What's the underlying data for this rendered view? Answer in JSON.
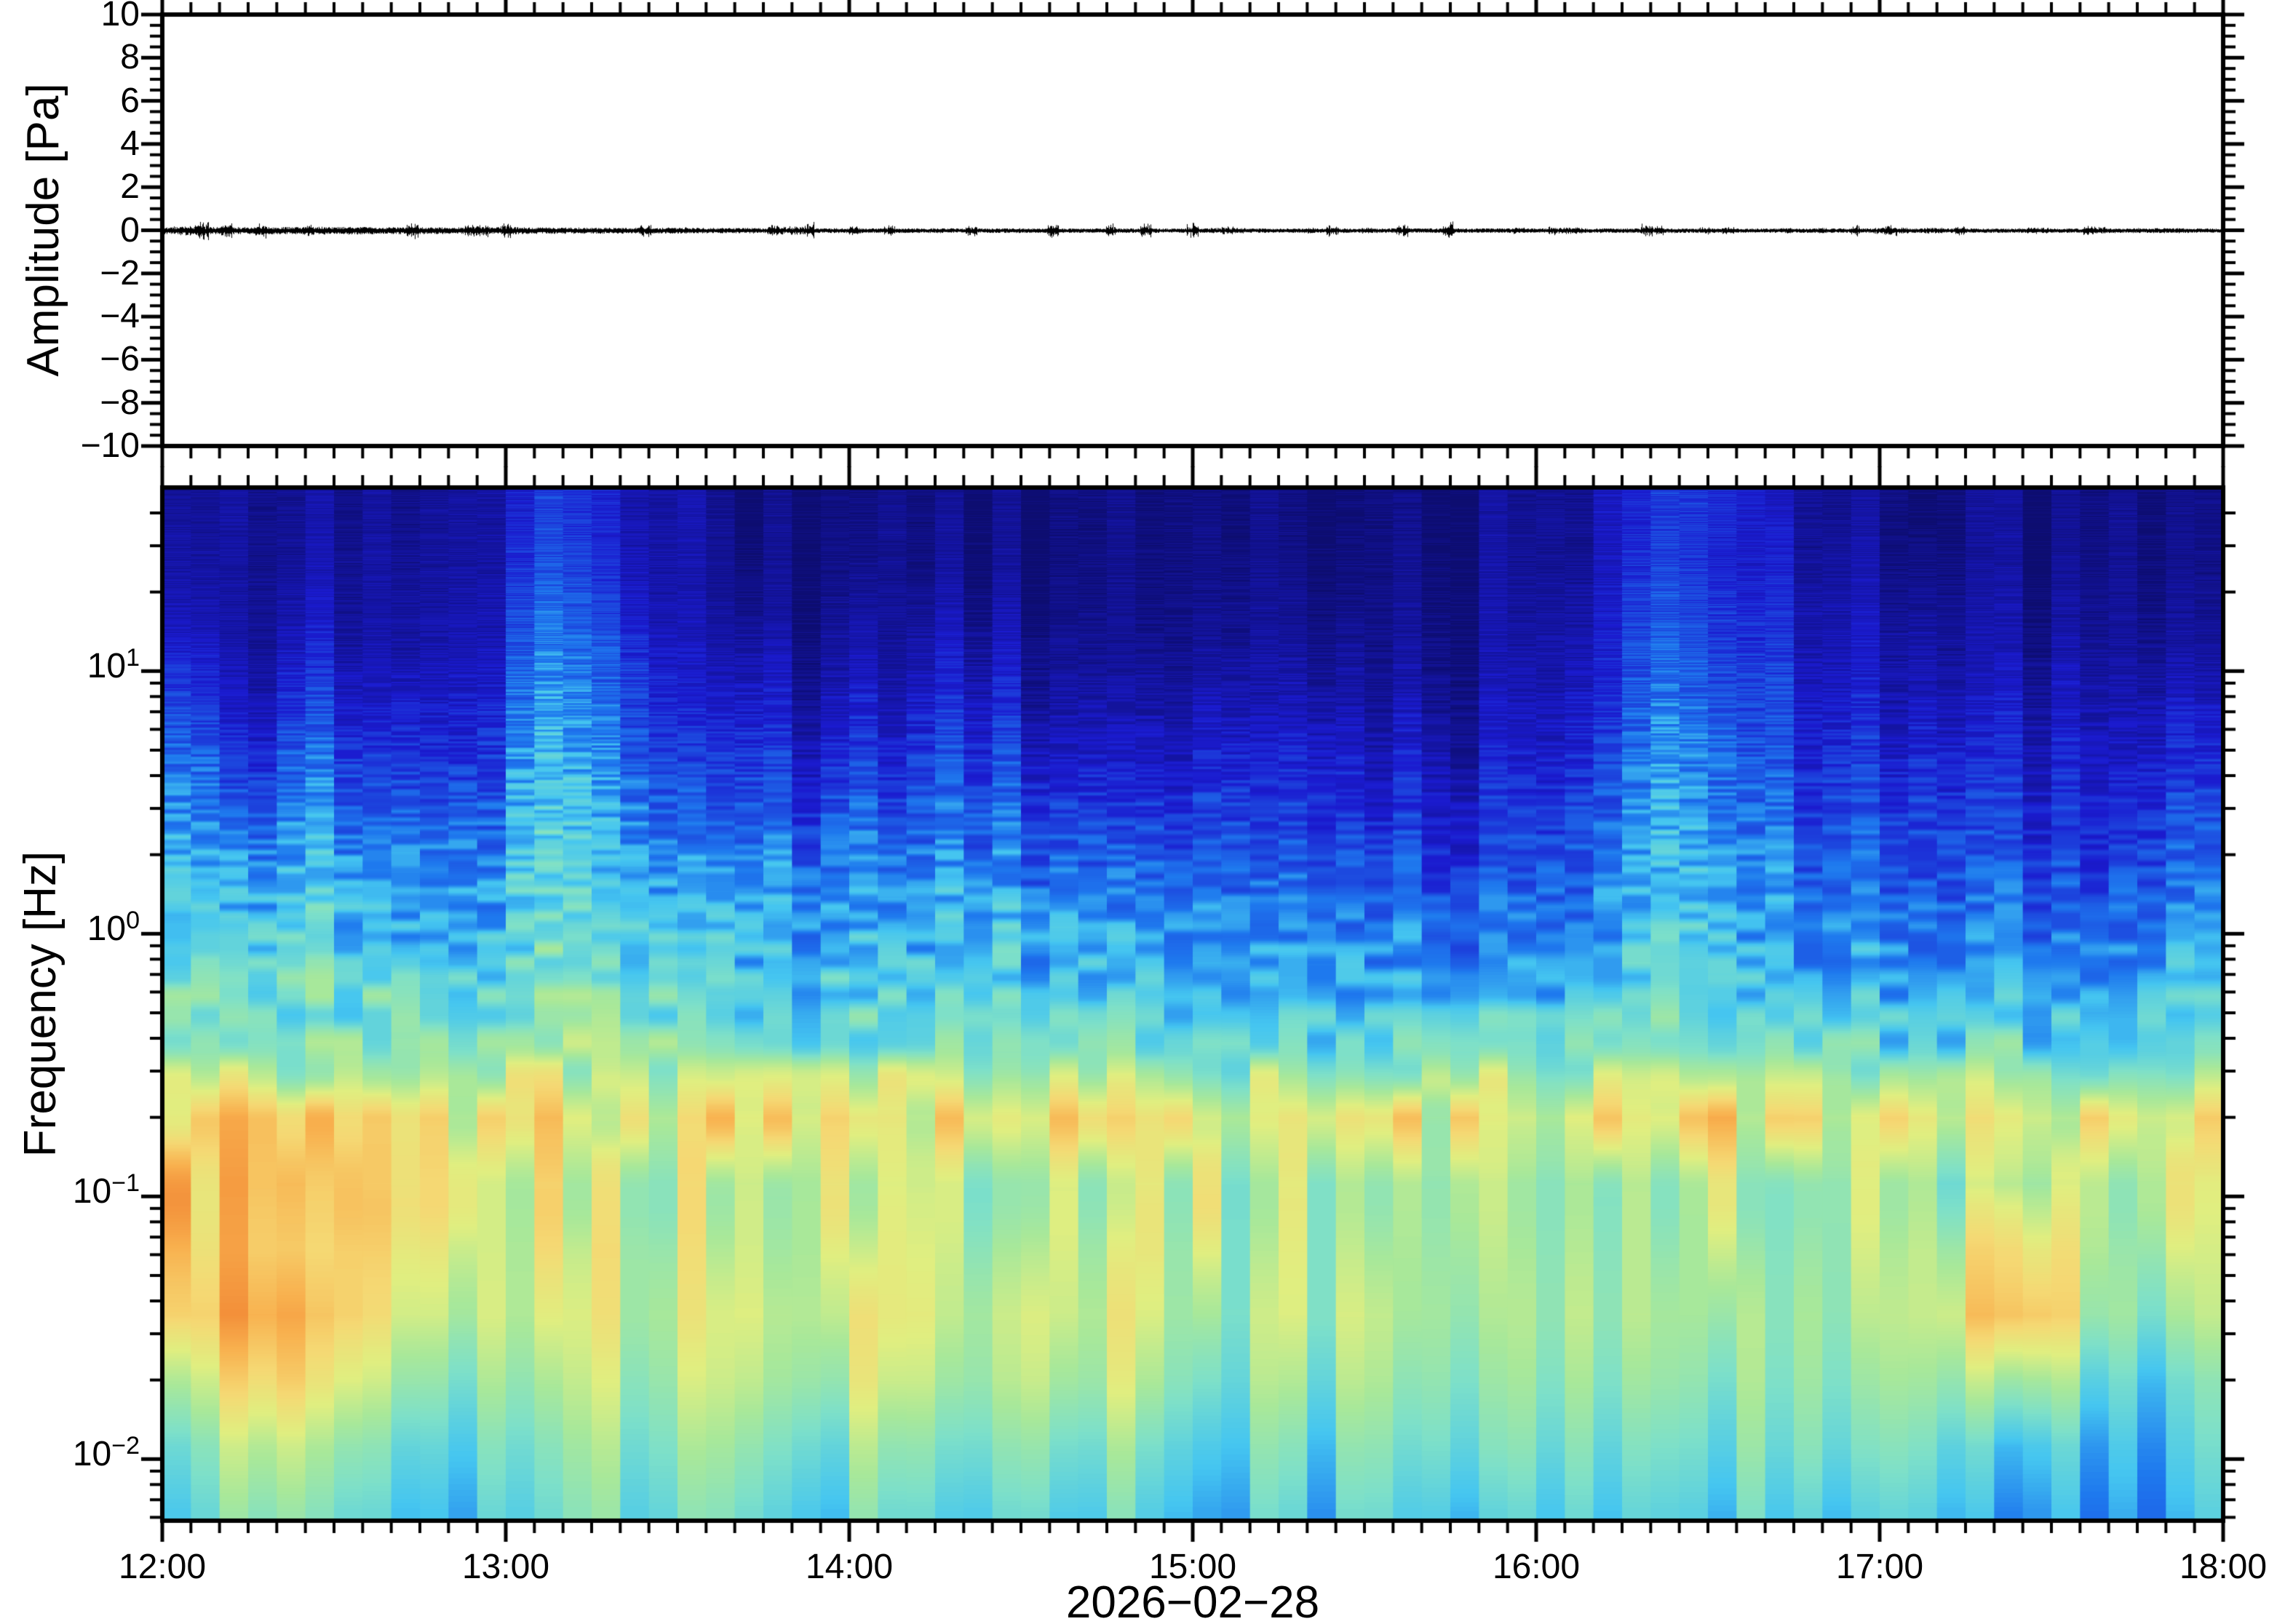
{
  "figure": {
    "background": "#ffffff",
    "frame_color": "#000000",
    "date_label": "2026−02−28",
    "x_axis": {
      "tick_labels": [
        "12:00",
        "13:00",
        "14:00",
        "15:00",
        "16:00",
        "17:00",
        "18:00"
      ],
      "minor_tick_minutes": 5
    },
    "wave_panel": {
      "ylabel": "Amplitude [Pa]",
      "ylim": [
        -10,
        10
      ],
      "ytick_values": [
        10,
        8,
        6,
        4,
        2,
        0,
        -2,
        -4,
        -6,
        -8,
        -10
      ],
      "ytick_labels": [
        "10",
        "8",
        "6",
        "4",
        "2",
        "0",
        "−2",
        "−4",
        "−6",
        "−8",
        "−10"
      ],
      "minor_step_pa": 0.5
    },
    "spec_panel": {
      "ylabel": "Frequency [Hz]",
      "ytick_values": [
        10,
        1,
        0.1,
        0.01
      ],
      "ytick_exponents": [
        "1",
        "0",
        "−1",
        "−2"
      ],
      "freq_max_hz": 50,
      "freq_min_hz": 0.0058
    }
  },
  "chart_data": [
    {
      "type": "line",
      "name": "pressure-waveform",
      "title": "",
      "ylabel": "Amplitude [Pa]",
      "ylim": [
        -10,
        10
      ],
      "x_range": [
        "12:00",
        "18:00"
      ],
      "date": "2026-02-28",
      "description": "Near-flat microbarom noise trace centered on 0 Pa for the whole 6 h window; rms about 0.1 Pa with sporadic bursts to about +/-0.5 Pa, slightly stronger before 13:30.",
      "baseline_pa": 0,
      "noise_rms_pa": 0.1,
      "max_excursion_pa": 0.6
    },
    {
      "type": "heatmap",
      "name": "infrasound-spectrogram",
      "xlabel": "2026−02−28",
      "ylabel": "Frequency [Hz]",
      "x_range": [
        "12:00",
        "18:00"
      ],
      "time_bin_minutes": 5,
      "y_scale": "log",
      "y_range_hz": [
        0.0058,
        50
      ],
      "value_units": "relative spectral power mapped to colormap position 0-1",
      "time_cols": [
        "12:00",
        "12:15",
        "12:30",
        "12:45",
        "13:00",
        "13:15",
        "13:30",
        "13:45",
        "14:00",
        "14:15",
        "14:30",
        "14:45",
        "15:00",
        "15:15",
        "15:30",
        "15:45",
        "16:00",
        "16:15",
        "16:30",
        "16:45",
        "17:00",
        "17:15",
        "17:30",
        "17:45"
      ],
      "row_log10_freq_hz": [
        1.55,
        1.3,
        1.05,
        0.8,
        0.55,
        0.3,
        0.05,
        -0.2,
        -0.45,
        -0.7,
        -0.95,
        -1.2,
        -1.45,
        -1.7,
        -1.95,
        -2.2
      ],
      "values": [
        [
          0.03,
          0.04,
          0.04,
          0.07,
          0.14,
          0.09,
          0.03,
          0.03,
          0.03,
          0.03,
          0.03,
          0.03,
          0.03,
          0.03,
          0.03,
          0.03,
          0.05,
          0.15,
          0.1,
          0.04,
          0.04,
          0.03,
          0.03,
          0.03
        ],
        [
          0.04,
          0.05,
          0.05,
          0.09,
          0.17,
          0.11,
          0.04,
          0.04,
          0.04,
          0.04,
          0.04,
          0.04,
          0.04,
          0.04,
          0.04,
          0.04,
          0.06,
          0.18,
          0.13,
          0.06,
          0.07,
          0.04,
          0.04,
          0.04
        ],
        [
          0.07,
          0.08,
          0.07,
          0.12,
          0.22,
          0.15,
          0.08,
          0.07,
          0.07,
          0.08,
          0.07,
          0.06,
          0.06,
          0.06,
          0.05,
          0.05,
          0.08,
          0.22,
          0.16,
          0.08,
          0.1,
          0.06,
          0.06,
          0.07
        ],
        [
          0.13,
          0.14,
          0.12,
          0.16,
          0.27,
          0.19,
          0.13,
          0.12,
          0.12,
          0.13,
          0.12,
          0.1,
          0.1,
          0.1,
          0.08,
          0.08,
          0.11,
          0.26,
          0.19,
          0.11,
          0.14,
          0.1,
          0.09,
          0.12
        ],
        [
          0.2,
          0.21,
          0.19,
          0.22,
          0.31,
          0.24,
          0.19,
          0.18,
          0.18,
          0.19,
          0.18,
          0.16,
          0.15,
          0.15,
          0.13,
          0.12,
          0.15,
          0.29,
          0.22,
          0.15,
          0.18,
          0.14,
          0.12,
          0.17
        ],
        [
          0.27,
          0.28,
          0.26,
          0.28,
          0.34,
          0.29,
          0.26,
          0.25,
          0.24,
          0.25,
          0.24,
          0.22,
          0.21,
          0.2,
          0.18,
          0.17,
          0.2,
          0.31,
          0.25,
          0.2,
          0.22,
          0.18,
          0.16,
          0.22
        ],
        [
          0.33,
          0.34,
          0.32,
          0.33,
          0.37,
          0.34,
          0.32,
          0.31,
          0.3,
          0.31,
          0.3,
          0.28,
          0.27,
          0.26,
          0.24,
          0.23,
          0.25,
          0.33,
          0.28,
          0.25,
          0.26,
          0.23,
          0.21,
          0.27
        ],
        [
          0.39,
          0.39,
          0.38,
          0.38,
          0.41,
          0.39,
          0.37,
          0.36,
          0.36,
          0.36,
          0.35,
          0.34,
          0.33,
          0.32,
          0.31,
          0.3,
          0.31,
          0.36,
          0.33,
          0.31,
          0.31,
          0.29,
          0.28,
          0.33
        ],
        [
          0.46,
          0.46,
          0.45,
          0.45,
          0.47,
          0.46,
          0.45,
          0.44,
          0.44,
          0.44,
          0.43,
          0.42,
          0.42,
          0.41,
          0.4,
          0.4,
          0.41,
          0.43,
          0.41,
          0.4,
          0.4,
          0.39,
          0.38,
          0.42
        ],
        [
          0.68,
          0.64,
          0.62,
          0.62,
          0.63,
          0.62,
          0.62,
          0.63,
          0.64,
          0.62,
          0.63,
          0.65,
          0.62,
          0.63,
          0.62,
          0.61,
          0.62,
          0.64,
          0.62,
          0.61,
          0.62,
          0.6,
          0.62,
          0.65
        ],
        [
          0.7,
          0.66,
          0.58,
          0.56,
          0.55,
          0.54,
          0.53,
          0.55,
          0.56,
          0.54,
          0.55,
          0.57,
          0.52,
          0.53,
          0.5,
          0.49,
          0.5,
          0.52,
          0.49,
          0.48,
          0.5,
          0.47,
          0.5,
          0.54
        ],
        [
          0.7,
          0.62,
          0.6,
          0.55,
          0.56,
          0.54,
          0.53,
          0.56,
          0.58,
          0.55,
          0.57,
          0.6,
          0.52,
          0.54,
          0.5,
          0.48,
          0.5,
          0.52,
          0.48,
          0.47,
          0.52,
          0.62,
          0.5,
          0.52
        ],
        [
          0.72,
          0.68,
          0.62,
          0.56,
          0.54,
          0.52,
          0.54,
          0.58,
          0.6,
          0.56,
          0.58,
          0.6,
          0.52,
          0.55,
          0.5,
          0.47,
          0.5,
          0.52,
          0.47,
          0.46,
          0.52,
          0.72,
          0.48,
          0.5
        ],
        [
          0.58,
          0.6,
          0.55,
          0.5,
          0.48,
          0.47,
          0.5,
          0.54,
          0.55,
          0.52,
          0.53,
          0.55,
          0.48,
          0.5,
          0.46,
          0.44,
          0.46,
          0.48,
          0.44,
          0.43,
          0.47,
          0.5,
          0.38,
          0.42
        ],
        [
          0.46,
          0.48,
          0.45,
          0.43,
          0.42,
          0.42,
          0.44,
          0.46,
          0.46,
          0.45,
          0.45,
          0.46,
          0.42,
          0.43,
          0.41,
          0.4,
          0.41,
          0.42,
          0.4,
          0.39,
          0.41,
          0.33,
          0.3,
          0.38
        ],
        [
          0.4,
          0.41,
          0.39,
          0.38,
          0.38,
          0.38,
          0.39,
          0.4,
          0.4,
          0.39,
          0.39,
          0.4,
          0.37,
          0.38,
          0.36,
          0.34,
          0.36,
          0.37,
          0.35,
          0.33,
          0.36,
          0.27,
          0.26,
          0.34
        ]
      ],
      "features": [
        "broadband plume to 50 Hz at about 12:50-13:15",
        "broadband plume to 50 Hz at about 16:05-16:35",
        "persistent microbarom yellow band near 0.2 Hz",
        "orange low-frequency energy 0.02-0.1 Hz strongest 12:00-12:40",
        "orange blob near 0.035 Hz at about 17:20",
        "blue quiet patch near 0.01 Hz at about 17:30"
      ],
      "colormap": {
        "name": "jet-like pastel",
        "anchors": [
          {
            "v": 0.0,
            "color": "#0d0d70"
          },
          {
            "v": 0.12,
            "color": "#1b1bd0"
          },
          {
            "v": 0.25,
            "color": "#1e78ee"
          },
          {
            "v": 0.33,
            "color": "#45c6f0"
          },
          {
            "v": 0.42,
            "color": "#7ee0c8"
          },
          {
            "v": 0.5,
            "color": "#a8e89a"
          },
          {
            "v": 0.58,
            "color": "#e0ee80"
          },
          {
            "v": 0.66,
            "color": "#f5d873"
          },
          {
            "v": 0.75,
            "color": "#f8b04e"
          },
          {
            "v": 0.85,
            "color": "#f08030"
          },
          {
            "v": 1.0,
            "color": "#e05020"
          }
        ]
      }
    }
  ]
}
